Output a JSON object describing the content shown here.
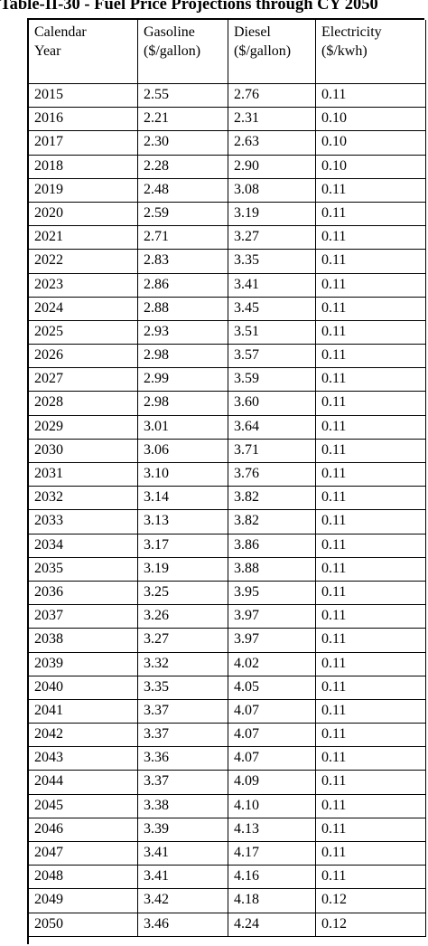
{
  "title": "Table-II-30 - Fuel Price Projections through CY 2050",
  "columns": [
    {
      "line1": "Calendar",
      "line2": "Year"
    },
    {
      "line1": "Gasoline",
      "line2": "($/gallon)"
    },
    {
      "line1": "Diesel",
      "line2": "($/gallon)"
    },
    {
      "line1": "Electricity",
      "line2": "($/kwh)"
    }
  ],
  "rows": [
    [
      "2015",
      "2.55",
      "2.76",
      "0.11"
    ],
    [
      "2016",
      "2.21",
      "2.31",
      "0.10"
    ],
    [
      "2017",
      "2.30",
      "2.63",
      "0.10"
    ],
    [
      "2018",
      "2.28",
      "2.90",
      "0.10"
    ],
    [
      "2019",
      "2.48",
      "3.08",
      "0.11"
    ],
    [
      "2020",
      "2.59",
      "3.19",
      "0.11"
    ],
    [
      "2021",
      "2.71",
      "3.27",
      "0.11"
    ],
    [
      "2022",
      "2.83",
      "3.35",
      "0.11"
    ],
    [
      "2023",
      "2.86",
      "3.41",
      "0.11"
    ],
    [
      "2024",
      "2.88",
      "3.45",
      "0.11"
    ],
    [
      "2025",
      "2.93",
      "3.51",
      "0.11"
    ],
    [
      "2026",
      "2.98",
      "3.57",
      "0.11"
    ],
    [
      "2027",
      "2.99",
      "3.59",
      "0.11"
    ],
    [
      "2028",
      "2.98",
      "3.60",
      "0.11"
    ],
    [
      "2029",
      "3.01",
      "3.64",
      "0.11"
    ],
    [
      "2030",
      "3.06",
      "3.71",
      "0.11"
    ],
    [
      "2031",
      "3.10",
      "3.76",
      "0.11"
    ],
    [
      "2032",
      "3.14",
      "3.82",
      "0.11"
    ],
    [
      "2033",
      "3.13",
      "3.82",
      "0.11"
    ],
    [
      "2034",
      "3.17",
      "3.86",
      "0.11"
    ],
    [
      "2035",
      "3.19",
      "3.88",
      "0.11"
    ],
    [
      "2036",
      "3.25",
      "3.95",
      "0.11"
    ],
    [
      "2037",
      "3.26",
      "3.97",
      "0.11"
    ],
    [
      "2038",
      "3.27",
      "3.97",
      "0.11"
    ],
    [
      "2039",
      "3.32",
      "4.02",
      "0.11"
    ],
    [
      "2040",
      "3.35",
      "4.05",
      "0.11"
    ],
    [
      "2041",
      "3.37",
      "4.07",
      "0.11"
    ],
    [
      "2042",
      "3.37",
      "4.07",
      "0.11"
    ],
    [
      "2043",
      "3.36",
      "4.07",
      "0.11"
    ],
    [
      "2044",
      "3.37",
      "4.09",
      "0.11"
    ],
    [
      "2045",
      "3.38",
      "4.10",
      "0.11"
    ],
    [
      "2046",
      "3.39",
      "4.13",
      "0.11"
    ],
    [
      "2047",
      "3.41",
      "4.17",
      "0.11"
    ],
    [
      "2048",
      "3.41",
      "4.16",
      "0.11"
    ],
    [
      "2049",
      "3.42",
      "4.18",
      "0.12"
    ],
    [
      "2050",
      "3.46",
      "4.24",
      "0.12"
    ]
  ]
}
